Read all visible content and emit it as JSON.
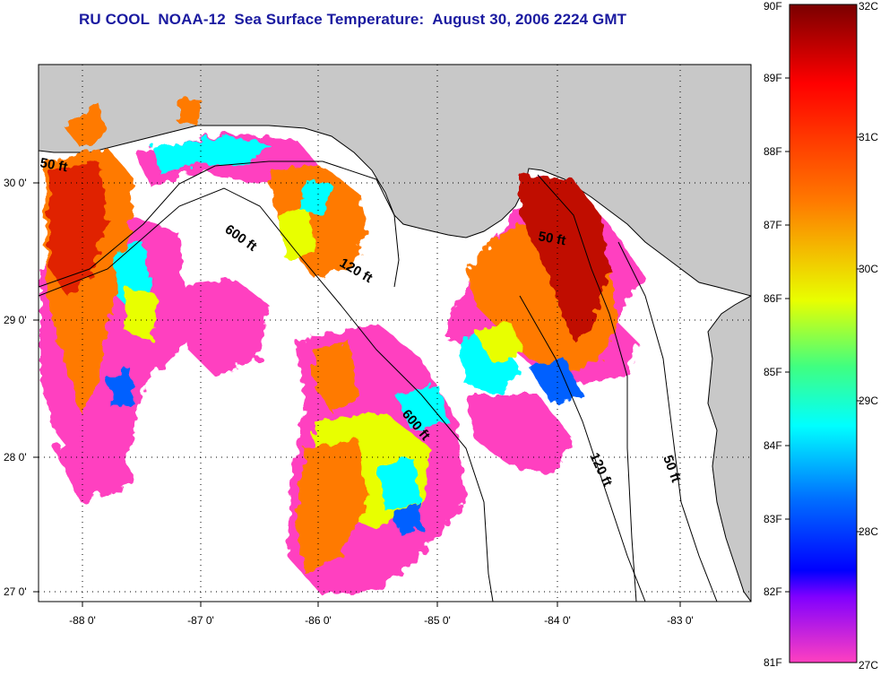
{
  "title": "RU COOL  NOAA-12  Sea Surface Temperature:  August 30, 2006 2224 GMT",
  "map": {
    "lon_range": [
      -88.3,
      -82.6
    ],
    "lat_range": [
      26.95,
      30.85
    ],
    "lon_ticks": [
      "-88 0'",
      "-87 0'",
      "-86 0'",
      "-85 0'",
      "-84 0'",
      "-83 0'"
    ],
    "lat_ticks": [
      "30 0'",
      "29 0'",
      "28 0'",
      "27 0'"
    ],
    "grid": "dotted",
    "land_color": "#c8c8c8",
    "isobath_labels": [
      "50 ft",
      "600 ft",
      "120 ft",
      "50 ft",
      "600 ft",
      "120 ft",
      "50 ft"
    ]
  },
  "colorbar": {
    "fahrenheit_labels": [
      "90F",
      "89F",
      "88F",
      "87F",
      "86F",
      "85F",
      "84F",
      "83F",
      "82F",
      "81F"
    ],
    "celsius_labels": [
      "32C",
      "31C",
      "30C",
      "29C",
      "28C",
      "27C"
    ],
    "colors": [
      "#800000",
      "#ff0000",
      "#ff8000",
      "#ffff00",
      "#00ff80",
      "#00ffff",
      "#0060ff",
      "#0000ff",
      "#8000ff",
      "#ff40c0"
    ]
  }
}
